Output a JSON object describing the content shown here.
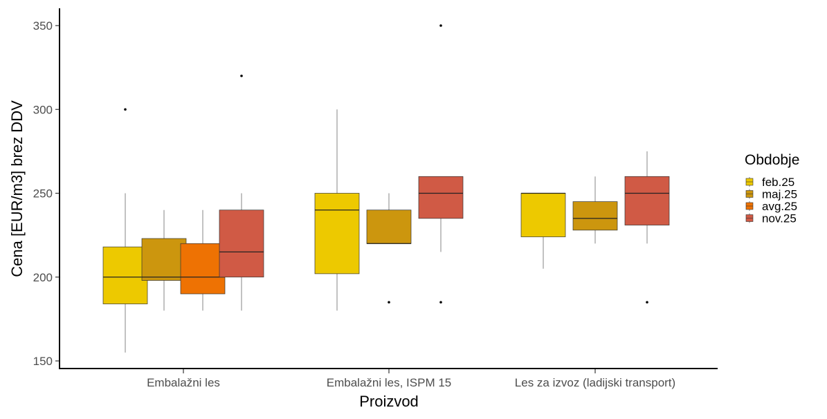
{
  "chart_data": {
    "type": "boxplot",
    "title": "",
    "xlabel": "Proizvod",
    "ylabel": "Cena [EUR/m3] brez DDV",
    "ylim": [
      145,
      360
    ],
    "yticks": [
      150,
      200,
      250,
      300,
      350
    ],
    "grid": false,
    "categories": [
      "Embalažni les",
      "Embalažni les, ISPM 15",
      "Les za izvoz (ladijski transport)"
    ],
    "legend": {
      "title": "Obdobje",
      "position": "right",
      "entries": [
        {
          "name": "feb.25",
          "color": "#EDC900"
        },
        {
          "name": "maj.25",
          "color": "#CC960E"
        },
        {
          "name": "avg.25",
          "color": "#EE7203"
        },
        {
          "name": "nov.25",
          "color": "#D05A45"
        }
      ]
    },
    "groups": [
      {
        "category": "Embalažni les",
        "boxes": [
          {
            "series": "feb.25",
            "whisker_low": 155,
            "q1": 184,
            "median": 200,
            "q3": 218,
            "whisker_high": 250,
            "outliers": [
              300
            ]
          },
          {
            "series": "maj.25",
            "whisker_low": 180,
            "q1": 198,
            "median": 200,
            "q3": 223,
            "whisker_high": 240,
            "outliers": []
          },
          {
            "series": "avg.25",
            "whisker_low": 180,
            "q1": 190,
            "median": 200,
            "q3": 220,
            "whisker_high": 240,
            "outliers": []
          },
          {
            "series": "nov.25",
            "whisker_low": 180,
            "q1": 200,
            "median": 215,
            "q3": 240,
            "whisker_high": 250,
            "outliers": [
              320
            ]
          }
        ]
      },
      {
        "category": "Embalažni les, ISPM 15",
        "boxes": [
          {
            "series": "feb.25",
            "whisker_low": 180,
            "q1": 202,
            "median": 240,
            "q3": 250,
            "whisker_high": 300,
            "outliers": []
          },
          {
            "series": "maj.25",
            "whisker_low": 220,
            "q1": 220,
            "median": 220,
            "q3": 240,
            "whisker_high": 250,
            "outliers": [
              185
            ]
          },
          {
            "series": "nov.25",
            "whisker_low": 215,
            "q1": 235,
            "median": 250,
            "q3": 260,
            "whisker_high": 260,
            "outliers": [
              185,
              350
            ]
          }
        ]
      },
      {
        "category": "Les za izvoz (ladijski transport)",
        "boxes": [
          {
            "series": "feb.25",
            "whisker_low": 205,
            "q1": 224,
            "median": 250,
            "q3": 250,
            "whisker_high": 250,
            "outliers": []
          },
          {
            "series": "maj.25",
            "whisker_low": 220,
            "q1": 228,
            "median": 235,
            "q3": 245,
            "whisker_high": 260,
            "outliers": []
          },
          {
            "series": "nov.25",
            "whisker_low": 220,
            "q1": 231,
            "median": 250,
            "q3": 260,
            "whisker_high": 275,
            "outliers": [
              185
            ]
          }
        ]
      }
    ]
  }
}
